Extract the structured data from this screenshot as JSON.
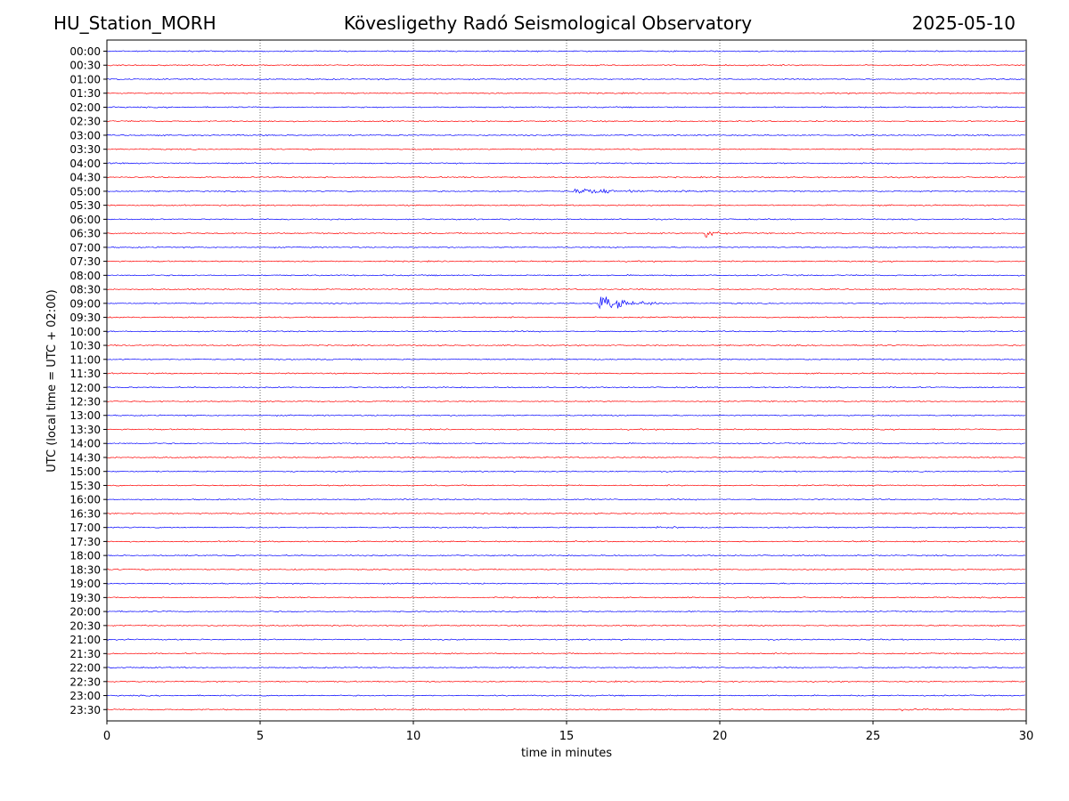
{
  "header": {
    "station": "HU_Station_MORH",
    "observatory": "Kövesligethy Radó Seismological Observatory",
    "date": "2025-05-10"
  },
  "chart_data": {
    "type": "line",
    "xlabel": "time in minutes",
    "ylabel": "UTC (local time = UTC + 02:00)",
    "xlim": [
      0,
      30
    ],
    "x_ticks": [
      "0",
      "5",
      "10",
      "15",
      "20",
      "25",
      "30"
    ],
    "grid": "vertical dotted at every 5 minutes",
    "row_labels": [
      "00:00",
      "00:30",
      "01:00",
      "01:30",
      "02:00",
      "02:30",
      "03:00",
      "03:30",
      "04:00",
      "04:30",
      "05:00",
      "05:30",
      "06:00",
      "06:30",
      "07:00",
      "07:30",
      "08:00",
      "08:30",
      "09:00",
      "09:30",
      "10:00",
      "10:30",
      "11:00",
      "11:30",
      "12:00",
      "12:30",
      "13:00",
      "13:30",
      "14:00",
      "14:30",
      "15:00",
      "15:30",
      "16:00",
      "16:30",
      "17:00",
      "17:30",
      "18:00",
      "18:30",
      "19:00",
      "19:30",
      "20:00",
      "20:30",
      "21:00",
      "21:30",
      "22:00",
      "22:30",
      "23:00",
      "23:30"
    ],
    "colors": {
      "even_rows": "#0000ff",
      "odd_rows": "#ff0000"
    },
    "events": [
      {
        "row": "05:00",
        "start_min": 15.2,
        "duration_min": 4.5,
        "peak": 0.7
      },
      {
        "row": "06:30",
        "start_min": 19.5,
        "duration_min": 1.2,
        "peak": 1.0
      },
      {
        "row": "09:00",
        "start_min": 16.0,
        "duration_min": 2.5,
        "peak": 2.2
      },
      {
        "row": "17:00",
        "start_min": 17.9,
        "duration_min": 0.8,
        "peak": 0.25
      },
      {
        "row": "23:30",
        "start_min": 25.9,
        "duration_min": 1.2,
        "peak": 0.25
      }
    ]
  }
}
